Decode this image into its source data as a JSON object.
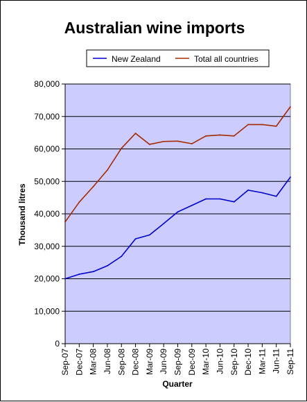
{
  "chart_data": {
    "type": "line",
    "title": "Australian wine imports",
    "xlabel": "Quarter",
    "ylabel": "Thousand litres",
    "ylim": [
      0,
      80000
    ],
    "ytick_step": 10000,
    "grid": true,
    "legend_position": "top",
    "categories": [
      "Sep-07",
      "Dec-07",
      "Mar-08",
      "Jun-08",
      "Sep-08",
      "Dec-08",
      "Mar-09",
      "Jun-09",
      "Sep-09",
      "Dec-09",
      "Mar-10",
      "Jun-10",
      "Sep-10",
      "Dec-10",
      "Mar-11",
      "Jun-11",
      "Sep-11"
    ],
    "series": [
      {
        "name": "New Zealand",
        "color": "#0000cc",
        "values": [
          20000,
          21400,
          22200,
          24000,
          26900,
          32300,
          33500,
          37000,
          40600,
          42600,
          44600,
          44600,
          43700,
          47300,
          46500,
          45400,
          51300
        ]
      },
      {
        "name": "Total all countries",
        "color": "#a52a00",
        "values": [
          37500,
          43600,
          48400,
          53500,
          60200,
          64800,
          61400,
          62300,
          62400,
          61600,
          64000,
          64300,
          64000,
          67500,
          67500,
          67000,
          73000
        ]
      }
    ],
    "plot_background": "#ccccff"
  }
}
